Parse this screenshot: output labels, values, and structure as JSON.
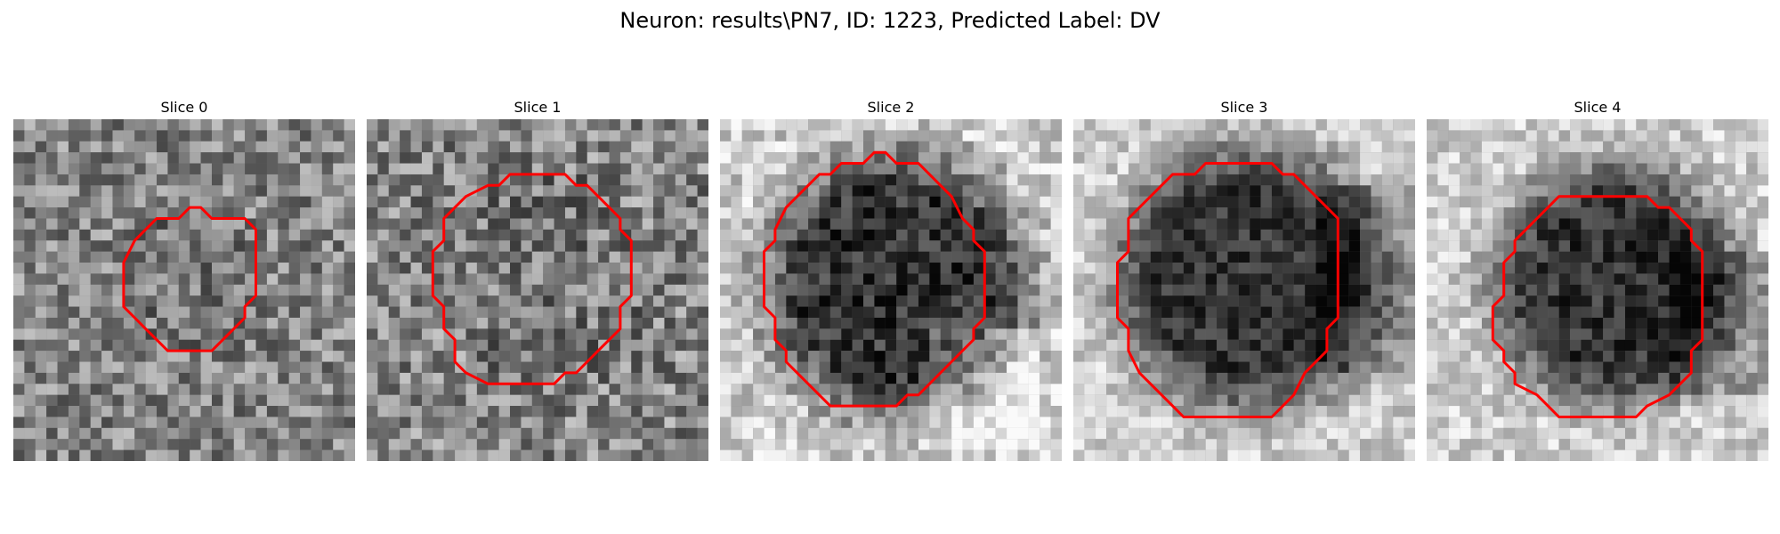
{
  "figure": {
    "title": "Neuron: results\\PN7, ID: 1223, Predicted Label: DV"
  },
  "slices": [
    {
      "label": "Slice 0",
      "pattern": "noise",
      "contour_color": "#ff0000"
    },
    {
      "label": "Slice 1",
      "pattern": "noise",
      "contour_color": "#ff0000"
    },
    {
      "label": "Slice 2",
      "pattern": "dark-blob",
      "contour_color": "#ff0000"
    },
    {
      "label": "Slice 3",
      "pattern": "dark-blob",
      "contour_color": "#ff0000"
    },
    {
      "label": "Slice 4",
      "pattern": "dark-blob",
      "contour_color": "#ff0000"
    }
  ]
}
